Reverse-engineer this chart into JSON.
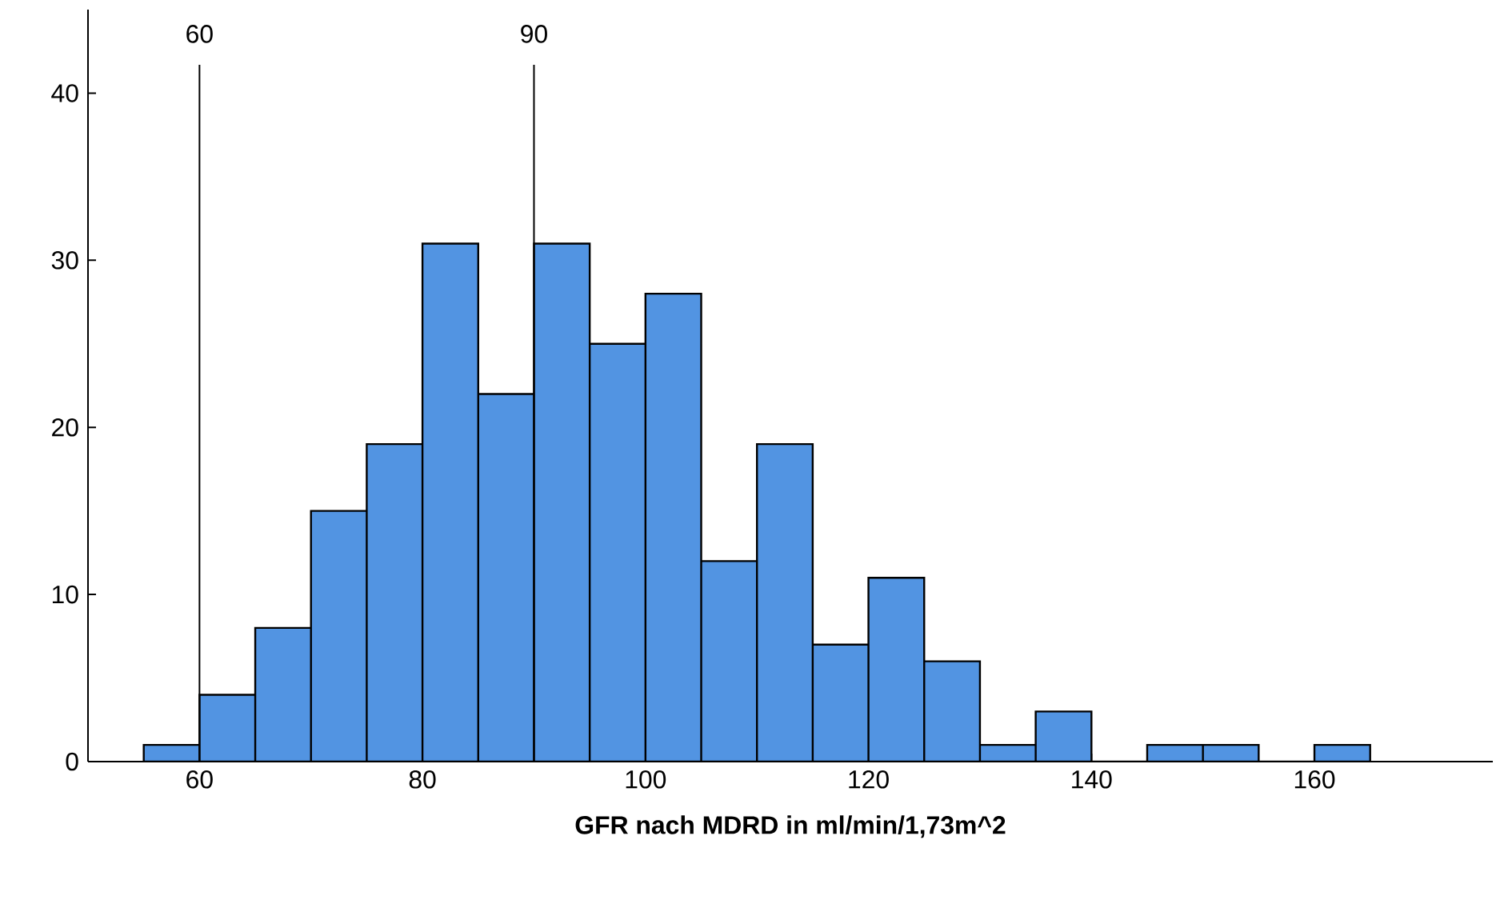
{
  "chart_data": {
    "type": "histogram",
    "xlabel": "GFR nach MDRD in ml/min/1,73m^2",
    "bins": [
      55,
      60,
      65,
      70,
      75,
      80,
      85,
      90,
      95,
      100,
      105,
      110,
      115,
      120,
      125,
      130,
      135,
      140,
      145,
      150,
      155,
      160,
      165
    ],
    "values": [
      1,
      4,
      8,
      15,
      19,
      31,
      22,
      31,
      25,
      28,
      12,
      19,
      7,
      11,
      6,
      1,
      3,
      0,
      1,
      1,
      0,
      1
    ],
    "color": "#5294e2",
    "xlim": [
      50,
      176
    ],
    "ylim": [
      0,
      45
    ],
    "xticks": [
      60,
      80,
      100,
      120,
      140,
      160
    ],
    "yticks": [
      0,
      10,
      20,
      30,
      40
    ],
    "ref_lines": [
      {
        "axis": "x",
        "value": 60,
        "label": "60"
      },
      {
        "axis": "x",
        "value": 90,
        "label": "90"
      }
    ],
    "grid": false
  }
}
